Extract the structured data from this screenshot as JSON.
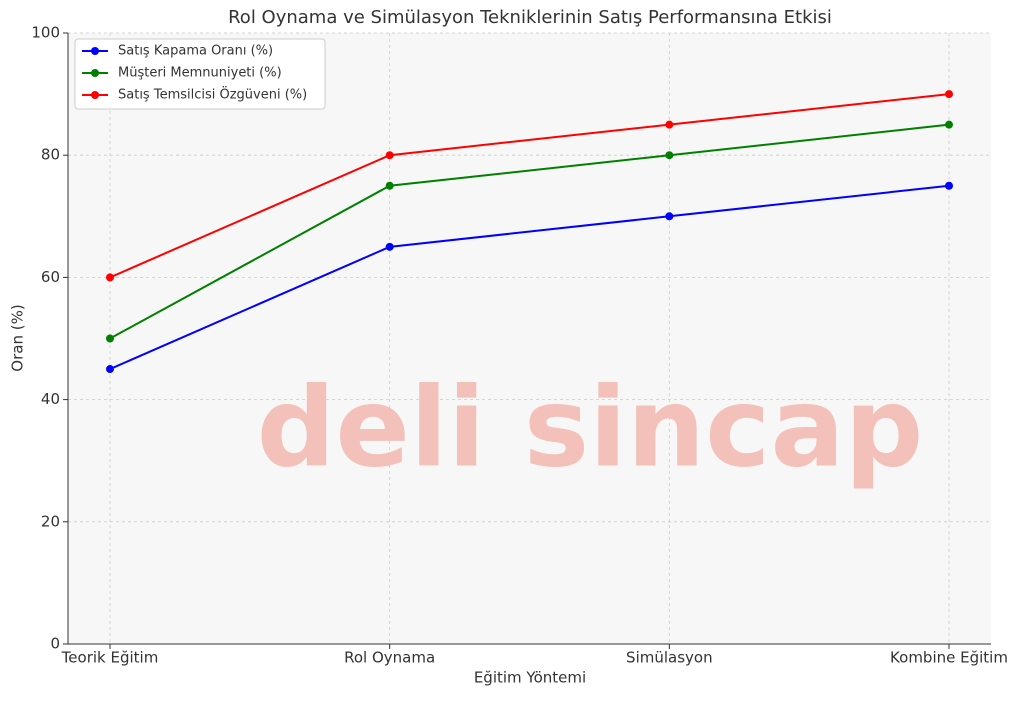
{
  "chart_data": {
    "type": "line",
    "title": "Rol Oynama ve Simülasyon Tekniklerinin Satış Performansına Etkisi",
    "x_label": "Eğitim Yöntemi",
    "y_label": "Oran (%)",
    "watermark": "deli sincap",
    "categories": [
      "Teorik Eğitim",
      "Rol Oynama",
      "Simülasyon",
      "Kombine Eğitim"
    ],
    "series": [
      {
        "name": "Satış Kapama Oranı (%)",
        "color": "#0000ff",
        "values": [
          45,
          65,
          70,
          75
        ]
      },
      {
        "name": "Müşteri Memnuniyeti (%)",
        "color": "#008000",
        "values": [
          50,
          75,
          80,
          85
        ]
      },
      {
        "name": "Satış Temsilcisi Özgüveni (%)",
        "color": "#ff0000",
        "values": [
          60,
          80,
          85,
          90
        ]
      }
    ],
    "ylim": [
      0,
      100
    ],
    "yticks": [
      0,
      20,
      40,
      60,
      80,
      100
    ],
    "grid": true,
    "legend": "upper left"
  }
}
